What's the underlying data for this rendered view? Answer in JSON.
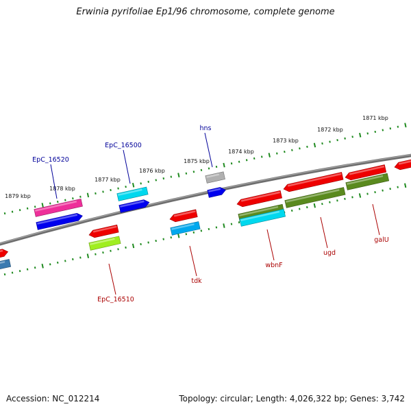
{
  "title": "Erwinia pyrifoliae Ep1/96 chromosome, complete genome",
  "footer": {
    "accession": "Accession: NC_012214",
    "summary": "Topology: circular; Length: 4,026,322 bp; Genes: 3,742"
  },
  "colors": {
    "backbone": "#808080",
    "ticks": "#1f8a1f",
    "label_forward": "#000099",
    "label_reverse": "#aa0000",
    "gene_red": "#ee0000",
    "gene_blue": "#0000ee",
    "gene_magenta": "#ee2f9a",
    "gene_cyan": "#00d8ee",
    "gene_sky": "#00a8ee",
    "gene_olive": "#5a8a1e",
    "gene_lime": "#a0ee20",
    "gene_grey": "#b0b0b0",
    "gene_steel": "#3a7ab0"
  },
  "scale_labels": [
    "1871 kbp",
    "1872 kbp",
    "1873 kbp",
    "1874 kbp",
    "1875 kbp",
    "1876 kbp",
    "1877 kbp",
    "1878 kbp",
    "1879 kbp"
  ],
  "gene_labels": [
    {
      "name": "hns",
      "strand": "forward"
    },
    {
      "name": "EpC_16500",
      "strand": "forward"
    },
    {
      "name": "EpC_16520",
      "strand": "forward"
    },
    {
      "name": "EpC_16510",
      "strand": "reverse"
    },
    {
      "name": "tdk",
      "strand": "reverse"
    },
    {
      "name": "wbnF",
      "strand": "reverse"
    },
    {
      "name": "ugd",
      "strand": "reverse"
    },
    {
      "name": "galU",
      "strand": "reverse"
    }
  ]
}
